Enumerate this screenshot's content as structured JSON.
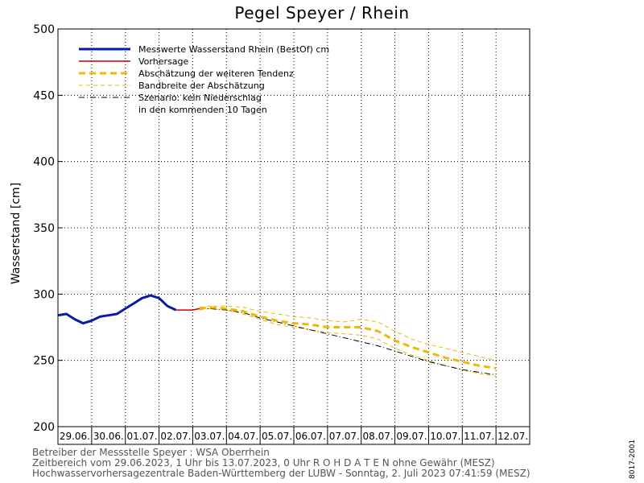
{
  "chart_data": {
    "type": "line",
    "title": "Pegel Speyer / Rhein",
    "ylabel": "Wasserstand [cm]",
    "xlabel": "",
    "ylim": [
      200,
      500
    ],
    "yticks": [
      200,
      250,
      300,
      350,
      400,
      450,
      500
    ],
    "x_ticks": [
      "29.06.",
      "30.06.",
      "01.07.",
      "02.07.",
      "03.07.",
      "04.07.",
      "05.07.",
      "06.07.",
      "07.07.",
      "08.07.",
      "09.07.",
      "10.07.",
      "11.07.",
      "12.07."
    ],
    "grid": true,
    "legend_position": "top-left",
    "series": [
      {
        "name": "Messwerte Wasserstand Rhein (BestOf)   cm",
        "style": "solid-thick",
        "color": "#0a1aa8",
        "x": [
          0.0,
          0.25,
          0.5,
          0.75,
          1.0,
          1.25,
          1.5,
          1.75,
          2.0,
          2.25,
          2.5,
          2.75,
          3.0,
          3.25,
          3.5
        ],
        "y": [
          284,
          285,
          281,
          278,
          280,
          283,
          284,
          285,
          289,
          293,
          297,
          299,
          297,
          291,
          288
        ]
      },
      {
        "name": "Vorhersage",
        "style": "solid",
        "color": "#cc0000",
        "x": [
          3.5,
          3.75,
          4.0,
          4.2
        ],
        "y": [
          288,
          288,
          288,
          289
        ]
      },
      {
        "name": "Abschätzung der weiteren Tendenz",
        "style": "dashed-thick",
        "color": "#f2b800",
        "x": [
          4.2,
          4.5,
          5.0,
          5.5,
          6.0,
          6.5,
          7.0,
          7.5,
          8.0,
          8.5,
          9.0,
          9.5,
          10.0,
          10.5,
          11.0,
          11.5,
          12.0,
          12.5,
          13.0
        ],
        "y": [
          289,
          290,
          289,
          287,
          283,
          280,
          278,
          277,
          275,
          275,
          275,
          272,
          265,
          260,
          256,
          252,
          249,
          246,
          244
        ]
      },
      {
        "name": "Bandbreite der Abschätzung",
        "style": "dashed-thin",
        "color": "#f2b800",
        "x": [
          4.2,
          4.5,
          5.0,
          5.5,
          6.0,
          6.5,
          7.0,
          7.5,
          8.0,
          8.5,
          9.0,
          9.5,
          10.0,
          10.5,
          11.0,
          11.5,
          12.0,
          12.5,
          13.0
        ],
        "y_upper": [
          290,
          291,
          291,
          290,
          287,
          285,
          283,
          282,
          280,
          279,
          281,
          279,
          272,
          266,
          262,
          259,
          256,
          253,
          250
        ],
        "y_lower": [
          288,
          289,
          288,
          285,
          281,
          277,
          275,
          273,
          271,
          270,
          269,
          266,
          259,
          254,
          250,
          246,
          243,
          240,
          238
        ]
      },
      {
        "name": "Szenario: kein Niederschlag",
        "name_line2": "in den kommenden 10 Tagen",
        "style": "dashdot",
        "color": "#000000",
        "x": [
          4.2,
          4.5,
          5.0,
          5.5,
          6.0,
          6.5,
          7.0,
          7.5,
          8.0,
          8.5,
          9.0,
          9.5,
          10.0,
          10.5,
          11.0,
          11.5,
          12.0,
          12.5,
          13.0
        ],
        "y": [
          289,
          289,
          288,
          286,
          282,
          279,
          276,
          273,
          270,
          267,
          264,
          261,
          257,
          253,
          249,
          246,
          243,
          241,
          239
        ]
      }
    ]
  },
  "footer": {
    "line1": "Betreiber der Messstelle Speyer : WSA Oberrhein",
    "line2": "Zeitbereich vom 29.06.2023, 1 Uhr bis 13.07.2023, 0 Uhr    R O H D A T E N ohne Gewähr (MESZ)",
    "line3": "Hochwasservorhersagezentrale Baden-Württemberg der LUBW - Sonntag, 2. Juli 2023 07:41:59 (MESZ)"
  },
  "code": "8017-2001"
}
